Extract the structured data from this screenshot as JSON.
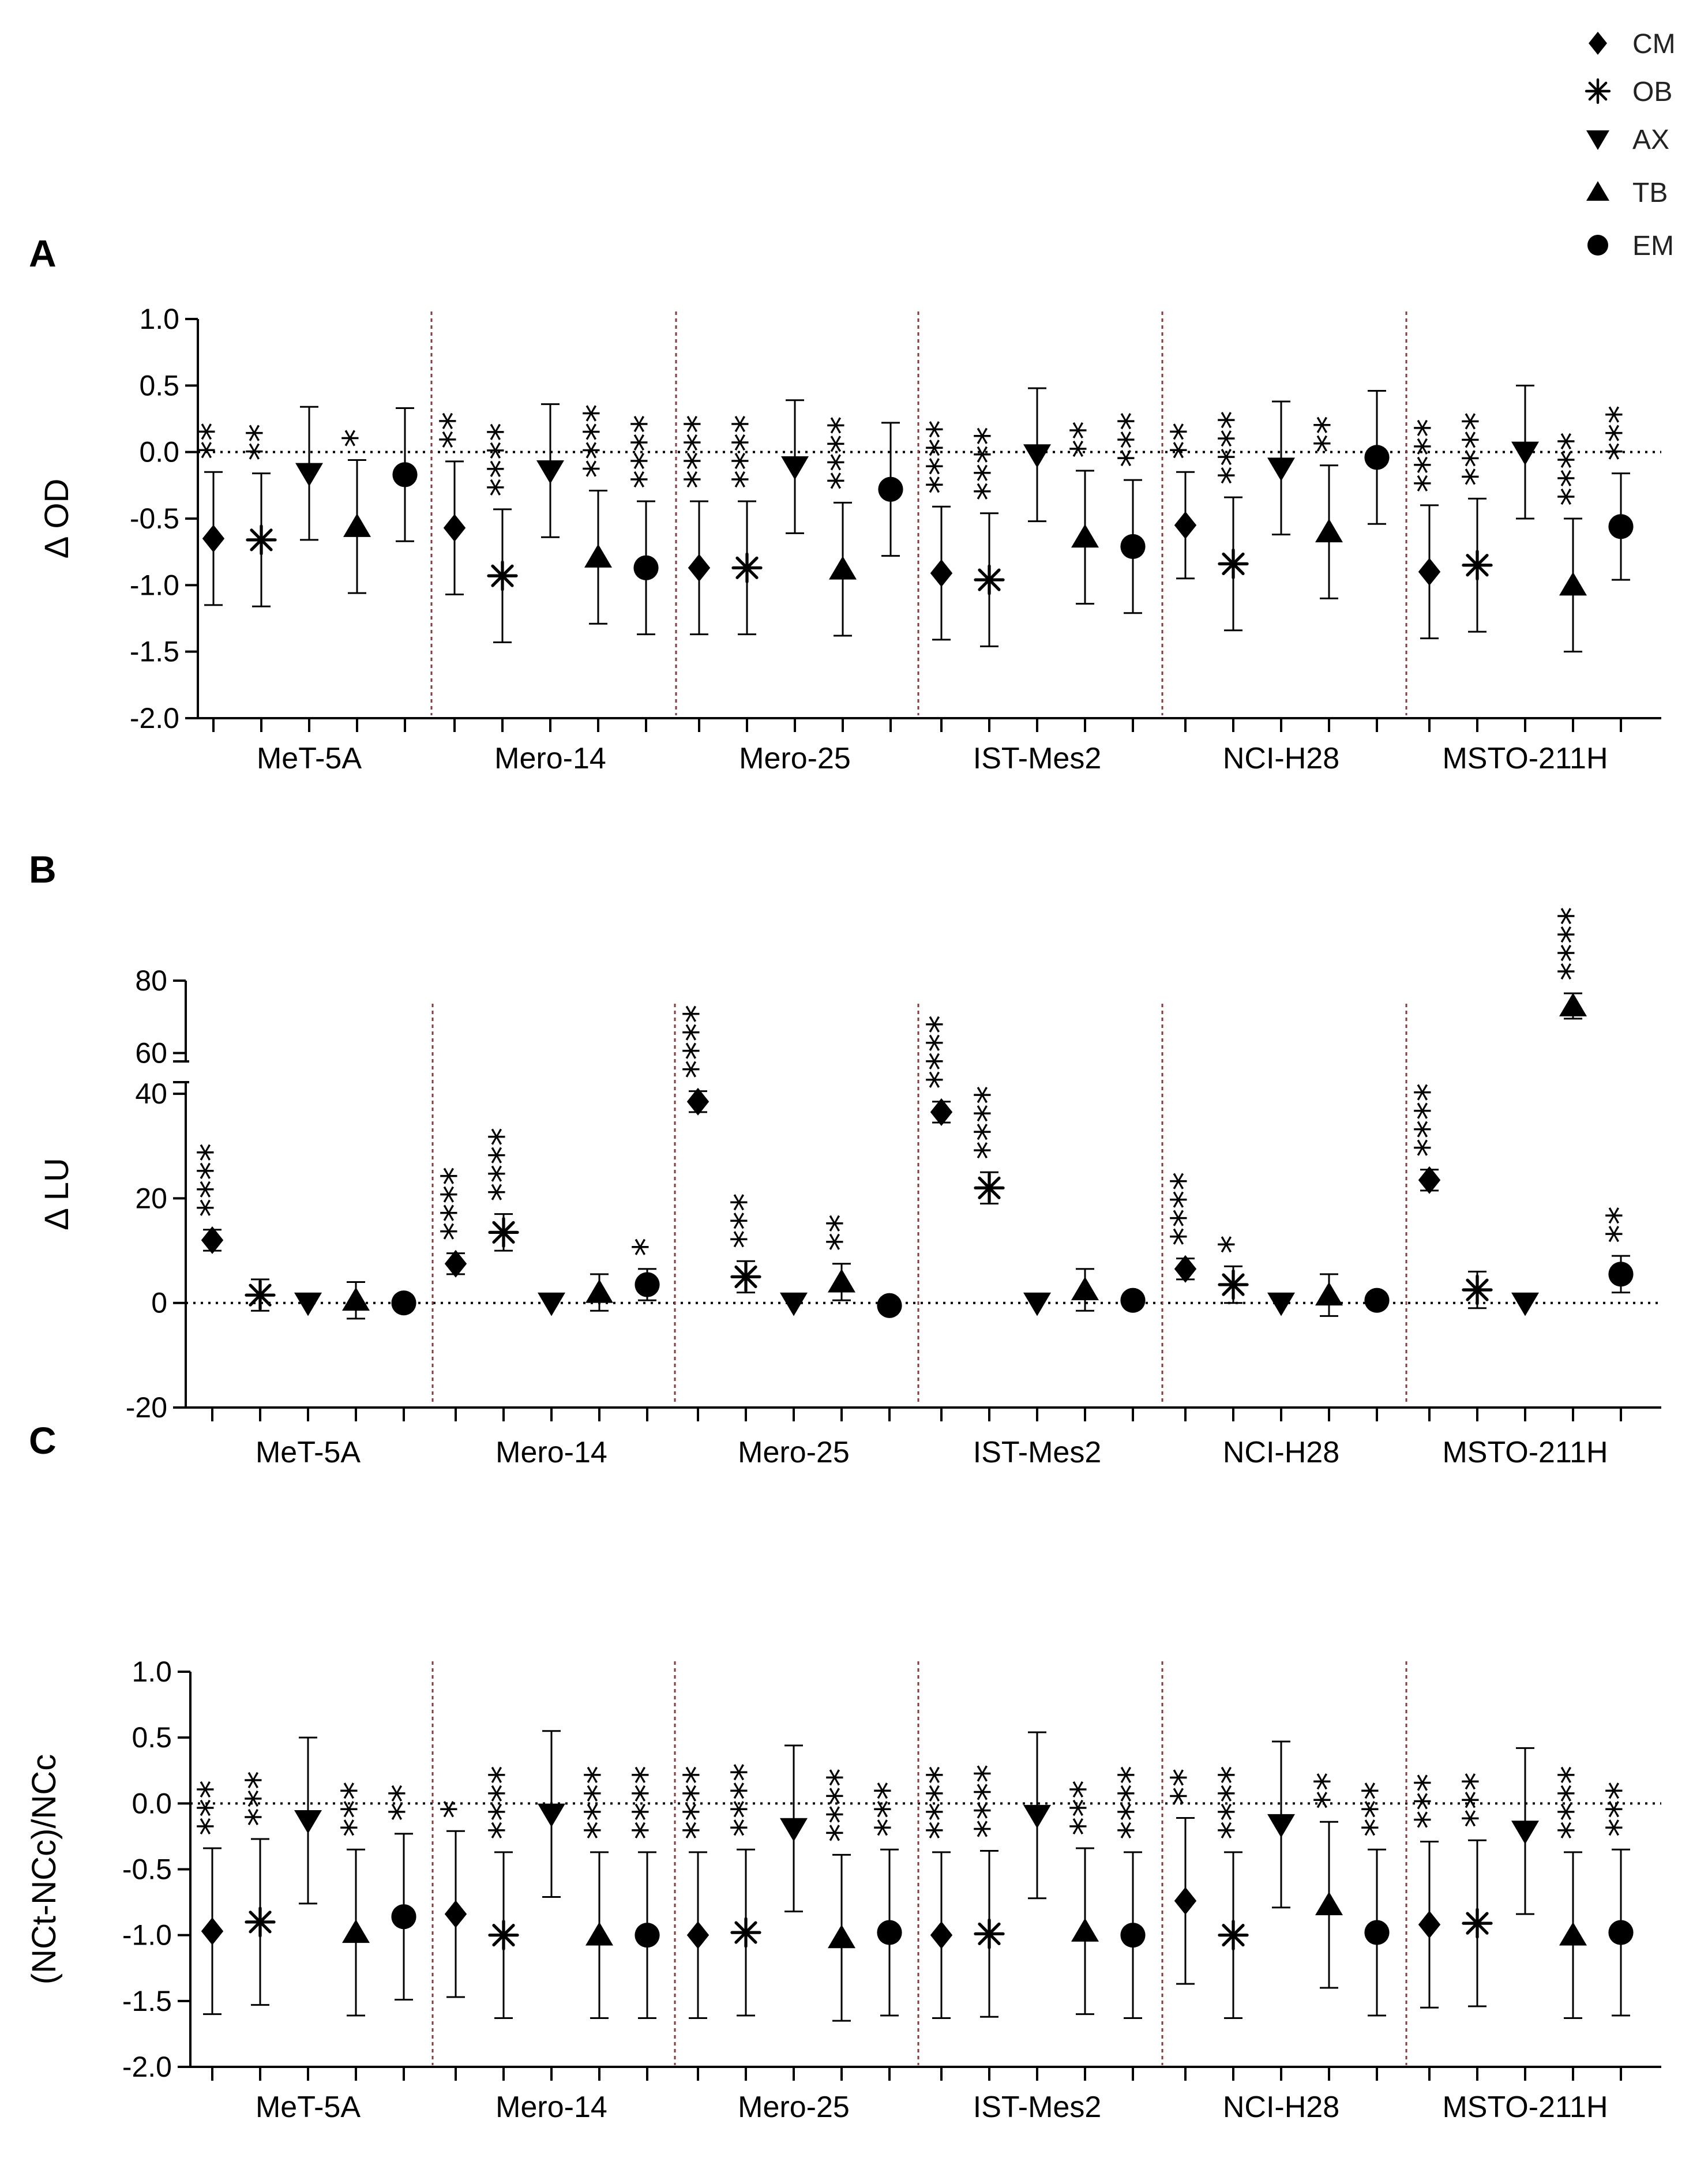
{
  "chart_data": [
    {
      "panel": "A",
      "type": "scatter",
      "ylabel": "Δ OD",
      "ylim": [
        -2.0,
        1.0
      ],
      "yticks": [
        "1.0",
        "0.5",
        "0.0",
        "-0.5",
        "-1.0",
        "-1.5",
        "-2.0"
      ],
      "categories": [
        "MeT-5A",
        "Mero-14",
        "Mero-25",
        "IST-Mes2",
        "NCI-H28",
        "MSTO-211H"
      ],
      "series": [
        {
          "name": "CM",
          "values": [
            -0.65,
            -0.57,
            -0.87,
            -0.91,
            -0.55,
            -0.9
          ],
          "err": [
            0.5,
            0.5,
            0.5,
            0.5,
            0.4,
            0.5
          ],
          "sig": [
            "**",
            "**",
            "****",
            "****",
            "**",
            "****"
          ]
        },
        {
          "name": "OB",
          "values": [
            -0.66,
            -0.93,
            -0.87,
            -0.96,
            -0.84,
            -0.85
          ],
          "err": [
            0.5,
            0.5,
            0.5,
            0.5,
            0.5,
            0.5
          ],
          "sig": [
            "**",
            "****",
            "****",
            "****",
            "****",
            "****"
          ]
        },
        {
          "name": "AX",
          "values": [
            -0.16,
            -0.14,
            -0.11,
            -0.02,
            -0.12,
            -0.0
          ],
          "err": [
            0.5,
            0.5,
            0.5,
            0.5,
            0.5,
            0.5
          ],
          "sig": [
            "",
            "",
            "",
            "",
            "",
            ""
          ]
        },
        {
          "name": "TB",
          "values": [
            -0.56,
            -0.79,
            -0.88,
            -0.64,
            -0.6,
            -1.0
          ],
          "err": [
            0.5,
            0.5,
            0.5,
            0.5,
            0.5,
            0.5
          ],
          "sig": [
            "*",
            "****",
            "****",
            "**",
            "**",
            "****"
          ]
        },
        {
          "name": "EM",
          "values": [
            -0.17,
            -0.87,
            -0.28,
            -0.71,
            -0.04,
            -0.56
          ],
          "err": [
            0.5,
            0.5,
            0.5,
            0.5,
            0.5,
            0.4
          ],
          "sig": [
            "",
            "****",
            "",
            "***",
            "",
            "***"
          ]
        }
      ]
    },
    {
      "panel": "B",
      "type": "scatter",
      "ylabel": "Δ LU",
      "ylim": [
        -20,
        80
      ],
      "axis_break": [
        42,
        58
      ],
      "yticks": [
        "80",
        "60",
        "40",
        "20",
        "0",
        "-20"
      ],
      "categories": [
        "MeT-5A",
        "Mero-14",
        "Mero-25",
        "IST-Mes2",
        "NCI-H28",
        "MSTO-211H"
      ],
      "series": [
        {
          "name": "CM",
          "values": [
            12,
            7.5,
            38.5,
            36.5,
            6.5,
            23.5
          ],
          "err": [
            2,
            2,
            2,
            2,
            2,
            2
          ],
          "sig": [
            "****",
            "****",
            "****",
            "****",
            "****",
            "****"
          ]
        },
        {
          "name": "OB",
          "values": [
            1.5,
            13.5,
            5,
            22,
            3.5,
            2.5
          ],
          "err": [
            3,
            3.5,
            3,
            3,
            3.5,
            3.5
          ],
          "sig": [
            "",
            "****",
            "***",
            "****",
            "*",
            ""
          ]
        },
        {
          "name": "AX",
          "values": [
            0,
            0,
            0,
            0,
            0,
            0
          ],
          "err": [
            0,
            0,
            0,
            0,
            0,
            0
          ],
          "sig": [
            "",
            "",
            "",
            "",
            "",
            ""
          ]
        },
        {
          "name": "TB",
          "values": [
            0.5,
            2,
            4,
            2.5,
            1.5,
            73
          ],
          "err": [
            3.5,
            3.5,
            3.5,
            4,
            4,
            3.5
          ],
          "sig": [
            "",
            "",
            "**",
            "",
            "",
            "****"
          ]
        },
        {
          "name": "EM",
          "values": [
            0,
            3.5,
            -0.5,
            0.5,
            0.5,
            5.5
          ],
          "err": [
            0,
            3,
            0,
            0,
            0,
            3.5
          ],
          "sig": [
            "",
            "*",
            "",
            "",
            "",
            "**"
          ]
        }
      ]
    },
    {
      "panel": "C",
      "type": "scatter",
      "ylabel": "(NCt-NCc)/NCc",
      "ylim": [
        -2.0,
        1.0
      ],
      "yticks": [
        "1.0",
        "0.5",
        "0.0",
        "-0.5",
        "-1.0",
        "-1.5",
        "-2.0"
      ],
      "categories": [
        "MeT-5A",
        "Mero-14",
        "Mero-25",
        "IST-Mes2",
        "NCI-H28",
        "MSTO-211H"
      ],
      "series": [
        {
          "name": "CM",
          "values": [
            -0.97,
            -0.84,
            -1.0,
            -1.0,
            -0.74,
            -0.92
          ],
          "err": [
            0.63,
            0.63,
            0.63,
            0.63,
            0.63,
            0.63
          ],
          "sig": [
            "***",
            "*",
            "****",
            "****",
            "**",
            "***"
          ]
        },
        {
          "name": "OB",
          "values": [
            -0.9,
            -1.0,
            -0.98,
            -0.99,
            -1.0,
            -0.91
          ],
          "err": [
            0.63,
            0.63,
            0.63,
            0.63,
            0.63,
            0.63
          ],
          "sig": [
            "***",
            "****",
            "****",
            "****",
            "****",
            "***"
          ]
        },
        {
          "name": "AX",
          "values": [
            -0.13,
            -0.08,
            -0.19,
            -0.09,
            -0.16,
            -0.21
          ],
          "err": [
            0.63,
            0.63,
            0.63,
            0.63,
            0.63,
            0.63
          ],
          "sig": [
            "",
            "",
            "",
            "",
            "",
            ""
          ]
        },
        {
          "name": "TB",
          "values": [
            -0.98,
            -1.0,
            -1.02,
            -0.97,
            -0.77,
            -1.0
          ],
          "err": [
            0.63,
            0.63,
            0.63,
            0.63,
            0.63,
            0.63
          ],
          "sig": [
            "***",
            "****",
            "****",
            "***",
            "**",
            "****"
          ]
        },
        {
          "name": "EM",
          "values": [
            -0.86,
            -1.0,
            -0.98,
            -1.0,
            -0.98,
            -0.98
          ],
          "err": [
            0.63,
            0.63,
            0.63,
            0.63,
            0.63,
            0.63
          ],
          "sig": [
            "**",
            "****",
            "***",
            "****",
            "***",
            "***"
          ]
        }
      ]
    }
  ],
  "legend": [
    {
      "label": "CM",
      "marker": "diamond-icon"
    },
    {
      "label": "OB",
      "marker": "asterisk-icon"
    },
    {
      "label": "AX",
      "marker": "triangle-down-icon"
    },
    {
      "label": "TB",
      "marker": "triangle-up-icon"
    },
    {
      "label": "EM",
      "marker": "circle-icon"
    }
  ],
  "colors": {
    "ink": "#000000",
    "zero_line": "#000000",
    "separator": "#8a3a3a",
    "legend_text": "#222222"
  }
}
